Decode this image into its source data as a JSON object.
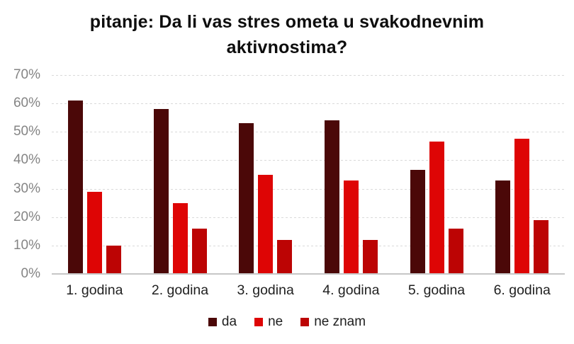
{
  "chart_data": {
    "type": "bar",
    "title": "pitanje: Da li vas stres ometa u svakodnevnim aktivnostima?",
    "categories": [
      "1. godina",
      "2. godina",
      "3. godina",
      "4. godina",
      "5. godina",
      "6. godina"
    ],
    "series": [
      {
        "name": "da",
        "color": "#4B0808",
        "values": [
          61,
          58,
          53,
          54,
          36.5,
          33
        ]
      },
      {
        "name": "ne",
        "color": "#DE0505",
        "values": [
          29,
          25,
          35,
          33,
          46.5,
          47.5
        ]
      },
      {
        "name": "ne znam",
        "color": "#BC0404",
        "values": [
          10,
          16,
          12,
          12,
          16,
          19
        ]
      }
    ],
    "xlabel": "",
    "ylabel": "",
    "ylim": [
      0,
      70
    ],
    "ytick_step": 10,
    "ytick_labels": [
      "0%",
      "10%",
      "20%",
      "30%",
      "40%",
      "50%",
      "60%",
      "70%"
    ],
    "grid": true,
    "legend_position": "bottom"
  },
  "colors": {
    "background": "#FFFFFF",
    "gridline": "#D9D9D9",
    "axis_line": "#C6C6C6",
    "ytick_text": "#848484",
    "xtick_text": "#1F1F1F",
    "title_text": "#0D0D0D",
    "legend_text": "#1F1F1F"
  }
}
